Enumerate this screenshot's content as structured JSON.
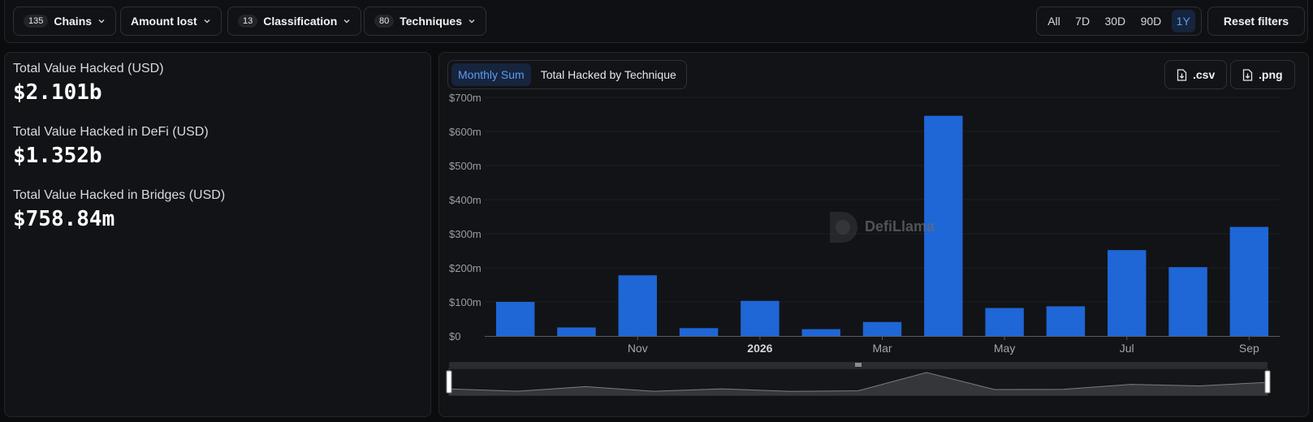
{
  "filters": {
    "chains": {
      "count": "135",
      "label": "Chains"
    },
    "amount_lost": {
      "label": "Amount lost"
    },
    "classification": {
      "count": "13",
      "label": "Classification"
    },
    "techniques": {
      "count": "80",
      "label": "Techniques"
    }
  },
  "time_range": {
    "options": [
      "All",
      "7D",
      "30D",
      "90D",
      "1Y"
    ],
    "selected": "1Y"
  },
  "reset_label": "Reset filters",
  "stats": [
    {
      "label": "Total Value Hacked (USD)",
      "value": "$2.101b"
    },
    {
      "label": "Total Value Hacked in DeFi (USD)",
      "value": "$1.352b"
    },
    {
      "label": "Total Value Hacked in Bridges (USD)",
      "value": "$758.84m"
    }
  ],
  "chart_tabs": [
    {
      "label": "Monthly Sum",
      "active": true
    },
    {
      "label": "Total Hacked by Technique",
      "active": false
    }
  ],
  "downloads": {
    "csv": ".csv",
    "png": ".png"
  },
  "watermark": "DefiLlama",
  "colors": {
    "bar": "#1f66d6",
    "accent": "#5b9cf5",
    "background": "#121316"
  },
  "icons": {
    "chevron": "chevron-down-icon",
    "download": "file-download-icon"
  },
  "chart_data": {
    "type": "bar",
    "categories": [
      "2025-09",
      "2025-10",
      "2025-11",
      "2025-12",
      "2026-01",
      "2026-02",
      "2026-03",
      "2026-04",
      "2026-05",
      "2026-06",
      "2026-07",
      "2026-08",
      "2026-09"
    ],
    "values": [
      100,
      25,
      178,
      23,
      103,
      20,
      41,
      646,
      82,
      87,
      252,
      202,
      320
    ],
    "unit": "$m",
    "ylim": [
      0,
      700
    ],
    "y_ticks": [
      "$0",
      "$100m",
      "$200m",
      "$300m",
      "$400m",
      "$500m",
      "$600m",
      "$700m"
    ],
    "x_ticks": [
      {
        "label": "Nov",
        "index": 2,
        "bold": false
      },
      {
        "label": "2026",
        "index": 4,
        "bold": true
      },
      {
        "label": "Mar",
        "index": 6,
        "bold": false
      },
      {
        "label": "May",
        "index": 8,
        "bold": false
      },
      {
        "label": "Jul",
        "index": 10,
        "bold": false
      },
      {
        "label": "Sep",
        "index": 12,
        "bold": false
      }
    ],
    "grid": true
  }
}
